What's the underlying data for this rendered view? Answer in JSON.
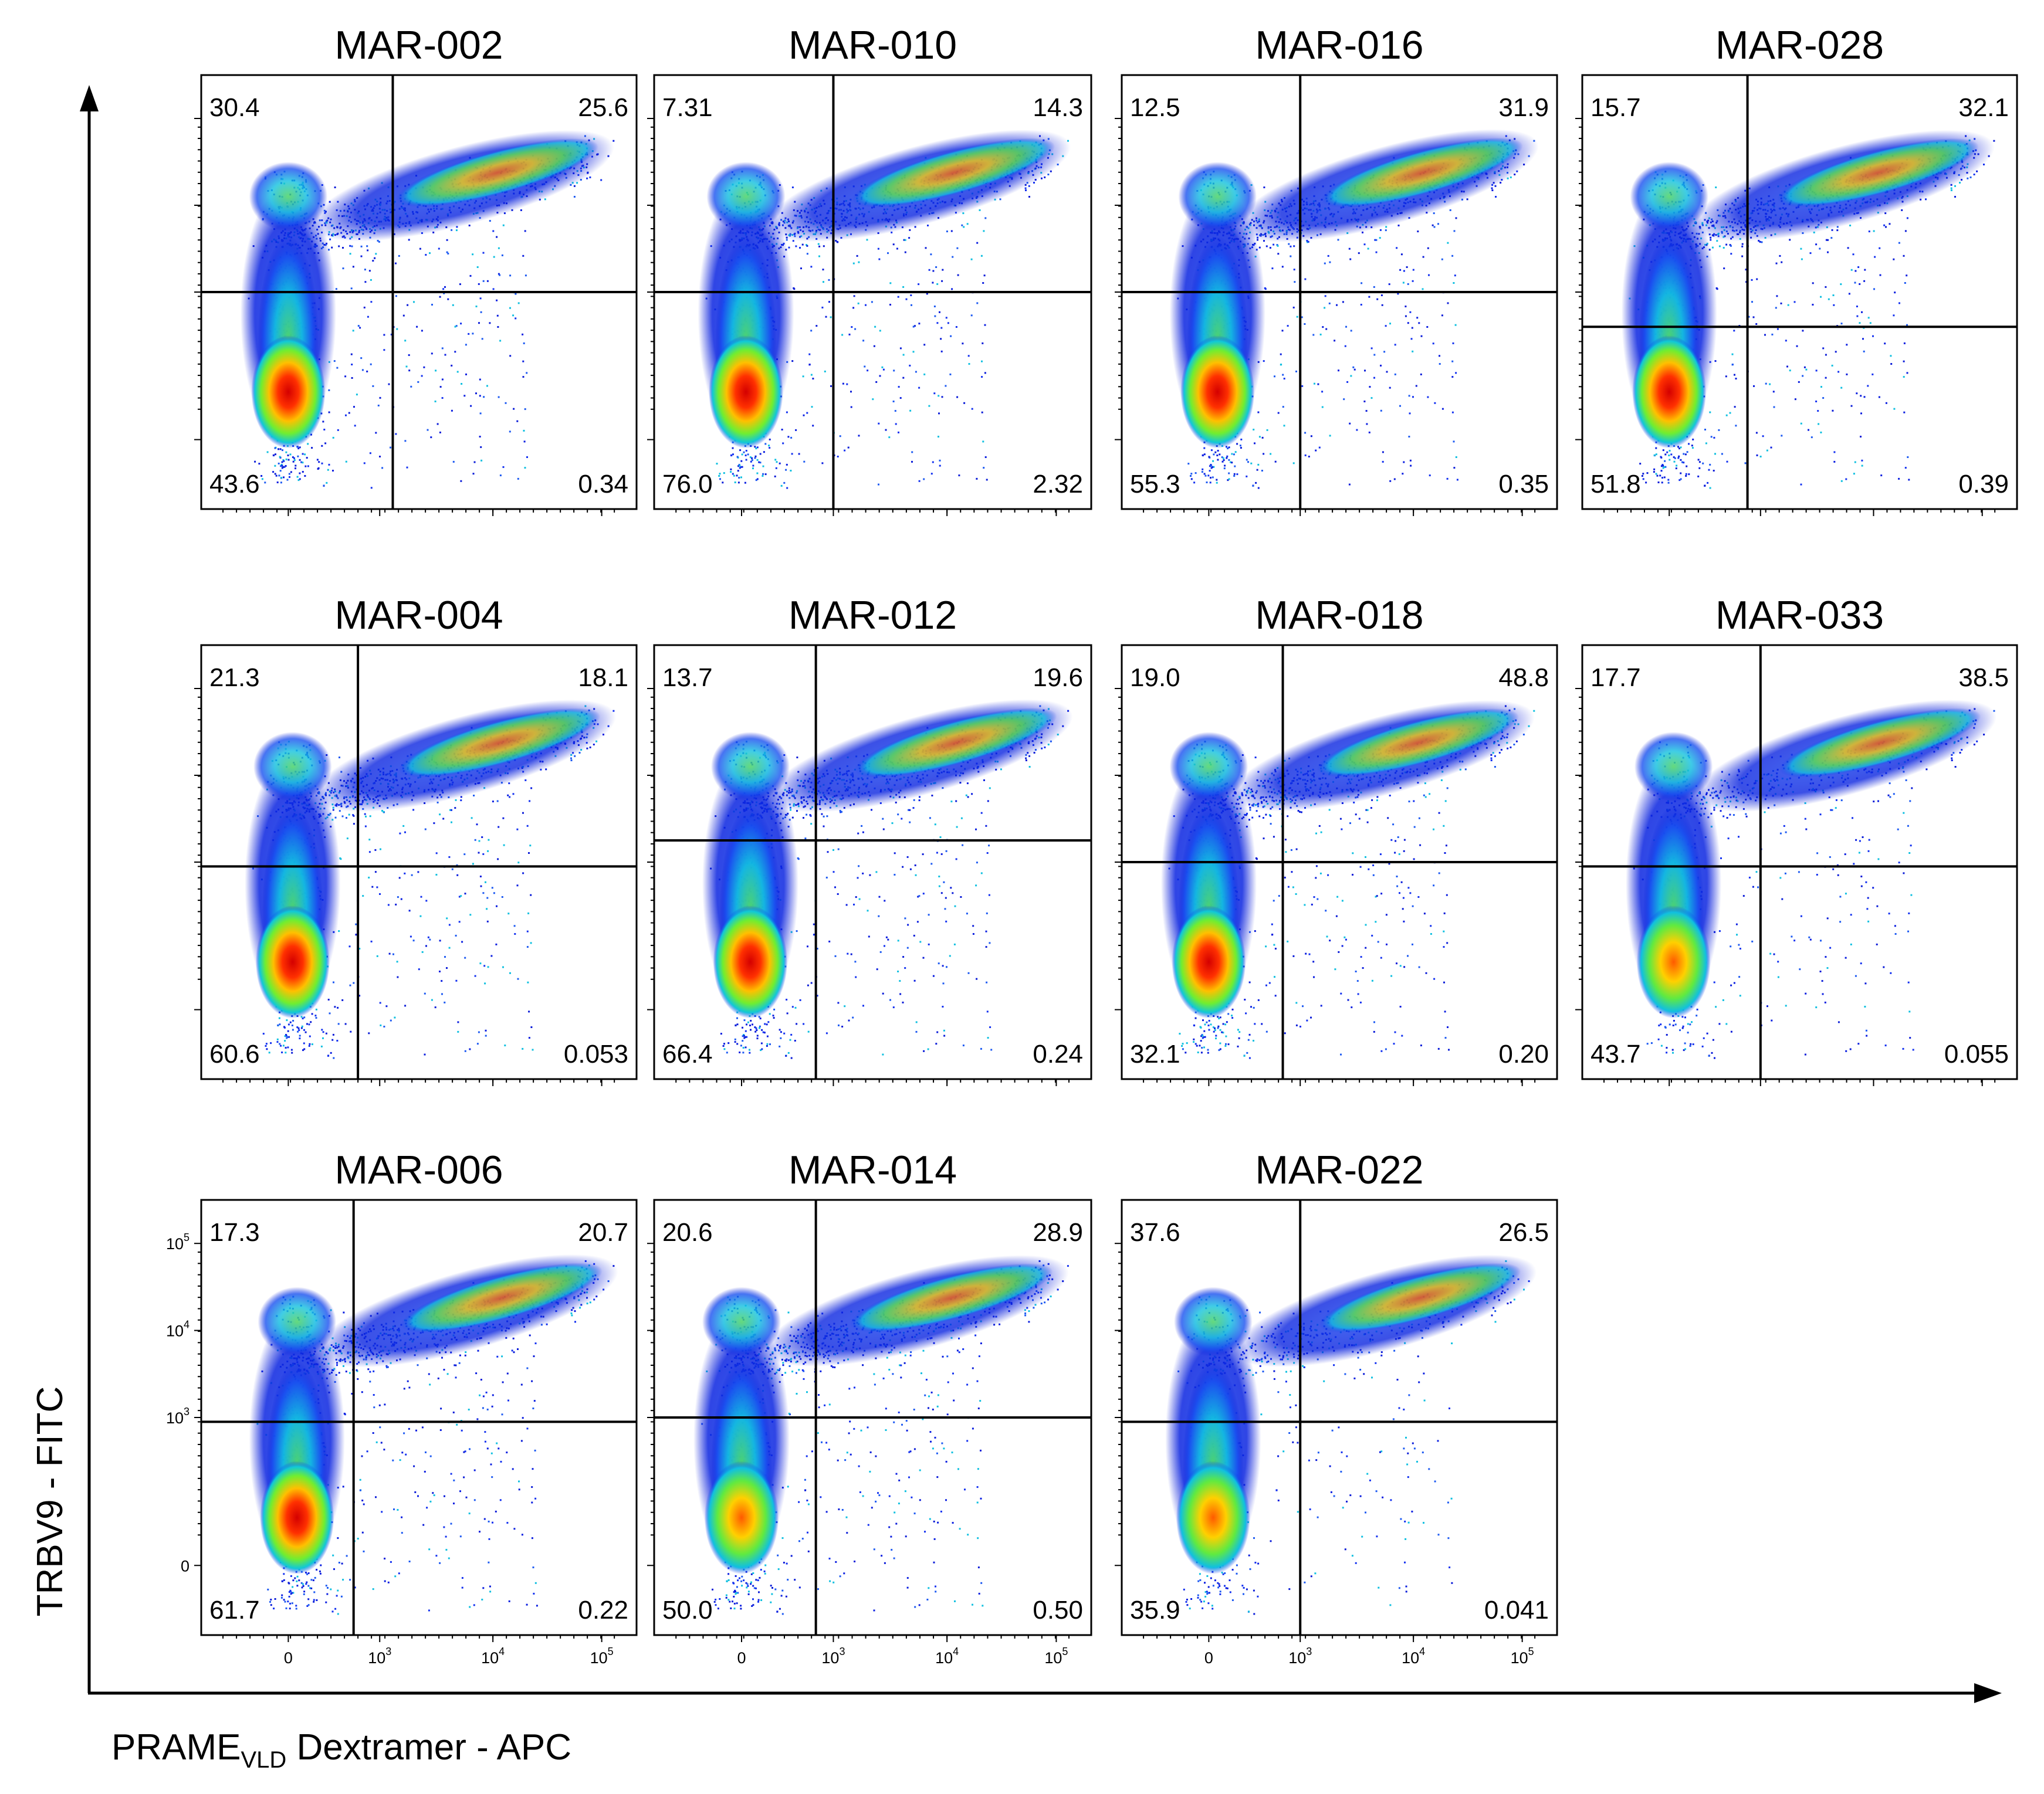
{
  "figure": {
    "x_axis_label": {
      "main": "PRAME",
      "subscript": "VLD",
      "rest": " Dextramer - APC"
    },
    "y_axis_label": "TRBV9 - FITC",
    "tick_labels": {
      "x": [
        {
          "base": "0",
          "exp": ""
        },
        {
          "base": "10",
          "exp": "3"
        },
        {
          "base": "10",
          "exp": "4"
        },
        {
          "base": "10",
          "exp": "5"
        }
      ],
      "y": [
        {
          "base": "0",
          "exp": ""
        },
        {
          "base": "10",
          "exp": "3"
        },
        {
          "base": "10",
          "exp": "4"
        },
        {
          "base": "10",
          "exp": "5"
        }
      ]
    }
  },
  "chart_data": [
    {
      "type": "scatter",
      "title": "MAR-002",
      "quadrants": {
        "upper_left": "30.4",
        "upper_right": "25.6",
        "lower_left": "43.6",
        "lower_right": "0.34"
      }
    },
    {
      "type": "scatter",
      "title": "MAR-010",
      "quadrants": {
        "upper_left": "7.31",
        "upper_right": "14.3",
        "lower_left": "76.0",
        "lower_right": "2.32"
      }
    },
    {
      "type": "scatter",
      "title": "MAR-016",
      "quadrants": {
        "upper_left": "12.5",
        "upper_right": "31.9",
        "lower_left": "55.3",
        "lower_right": "0.35"
      }
    },
    {
      "type": "scatter",
      "title": "MAR-028",
      "quadrants": {
        "upper_left": "15.7",
        "upper_right": "32.1",
        "lower_left": "51.8",
        "lower_right": "0.39"
      }
    },
    {
      "type": "scatter",
      "title": "MAR-004",
      "quadrants": {
        "upper_left": "21.3",
        "upper_right": "18.1",
        "lower_left": "60.6",
        "lower_right": "0.053"
      }
    },
    {
      "type": "scatter",
      "title": "MAR-012",
      "quadrants": {
        "upper_left": "13.7",
        "upper_right": "19.6",
        "lower_left": "66.4",
        "lower_right": "0.24"
      }
    },
    {
      "type": "scatter",
      "title": "MAR-018",
      "quadrants": {
        "upper_left": "19.0",
        "upper_right": "48.8",
        "lower_left": "32.1",
        "lower_right": "0.20"
      }
    },
    {
      "type": "scatter",
      "title": "MAR-033",
      "quadrants": {
        "upper_left": "17.7",
        "upper_right": "38.5",
        "lower_left": "43.7",
        "lower_right": "0.055"
      }
    },
    {
      "type": "scatter",
      "title": "MAR-006",
      "quadrants": {
        "upper_left": "17.3",
        "upper_right": "20.7",
        "lower_left": "61.7",
        "lower_right": "0.22"
      }
    },
    {
      "type": "scatter",
      "title": "MAR-014",
      "quadrants": {
        "upper_left": "20.6",
        "upper_right": "28.9",
        "lower_left": "50.0",
        "lower_right": "0.50"
      }
    },
    {
      "type": "scatter",
      "title": "MAR-022",
      "quadrants": {
        "upper_left": "37.6",
        "upper_right": "26.5",
        "lower_left": "35.9",
        "lower_right": "0.041"
      }
    }
  ]
}
